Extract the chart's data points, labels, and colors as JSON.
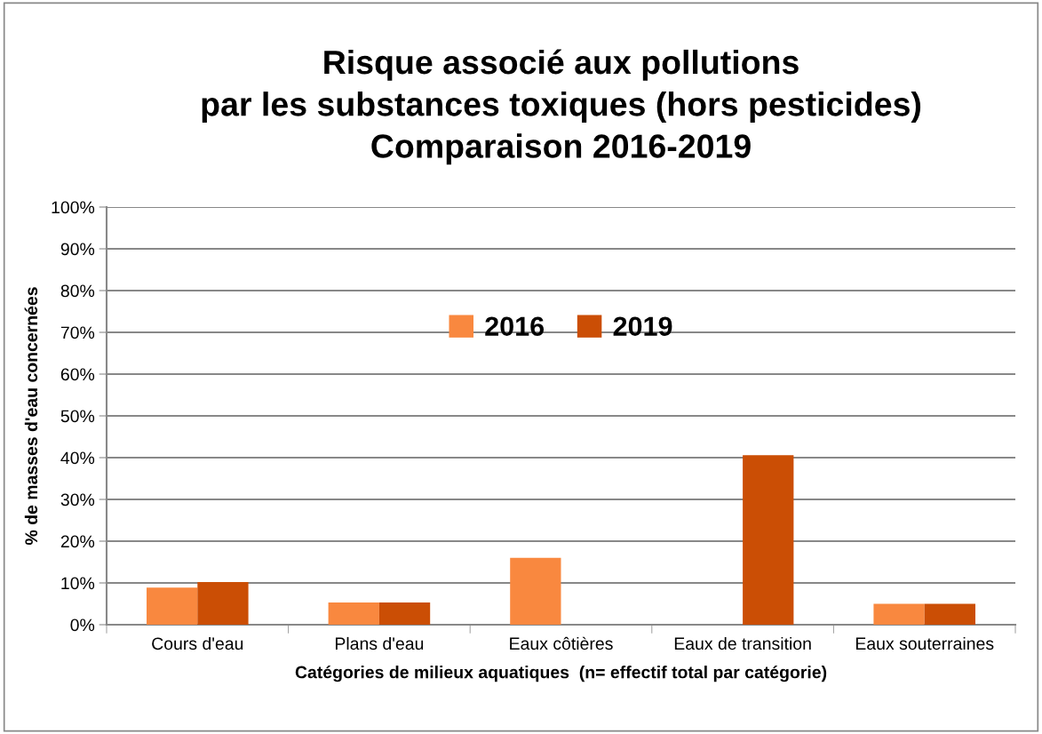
{
  "chart_data": {
    "type": "bar",
    "title": "Risque associé aux pollutions\npar les substances toxiques (hors pesticides)\nComparaison 2016-2019",
    "xlabel": "Catégories de milieux aquatiques  (n= effectif total par catégorie)",
    "ylabel": "% de masses d'eau concernées",
    "categories": [
      "Cours d'eau",
      "Plans d'eau",
      "Eaux côtières",
      "Eaux de transition",
      "Eaux souterraines"
    ],
    "series": [
      {
        "name": "2016",
        "color": "#f9883f",
        "values": [
          8.9,
          5.3,
          16.0,
          0,
          5.0
        ]
      },
      {
        "name": "2019",
        "color": "#cb4e05",
        "values": [
          10.2,
          5.3,
          0,
          40.6,
          5.0
        ]
      }
    ],
    "ylim": [
      0,
      100
    ],
    "yticks": [
      {
        "value": 0,
        "label": "0%"
      },
      {
        "value": 10,
        "label": "10%"
      },
      {
        "value": 20,
        "label": "20%"
      },
      {
        "value": 30,
        "label": "30%"
      },
      {
        "value": 40,
        "label": "40%"
      },
      {
        "value": 50,
        "label": "50%"
      },
      {
        "value": 60,
        "label": "60%"
      },
      {
        "value": 70,
        "label": "70%"
      },
      {
        "value": 80,
        "label": "80%"
      },
      {
        "value": 90,
        "label": "90%"
      },
      {
        "value": 100,
        "label": "100%"
      }
    ],
    "grid": "y",
    "legend": "top"
  }
}
